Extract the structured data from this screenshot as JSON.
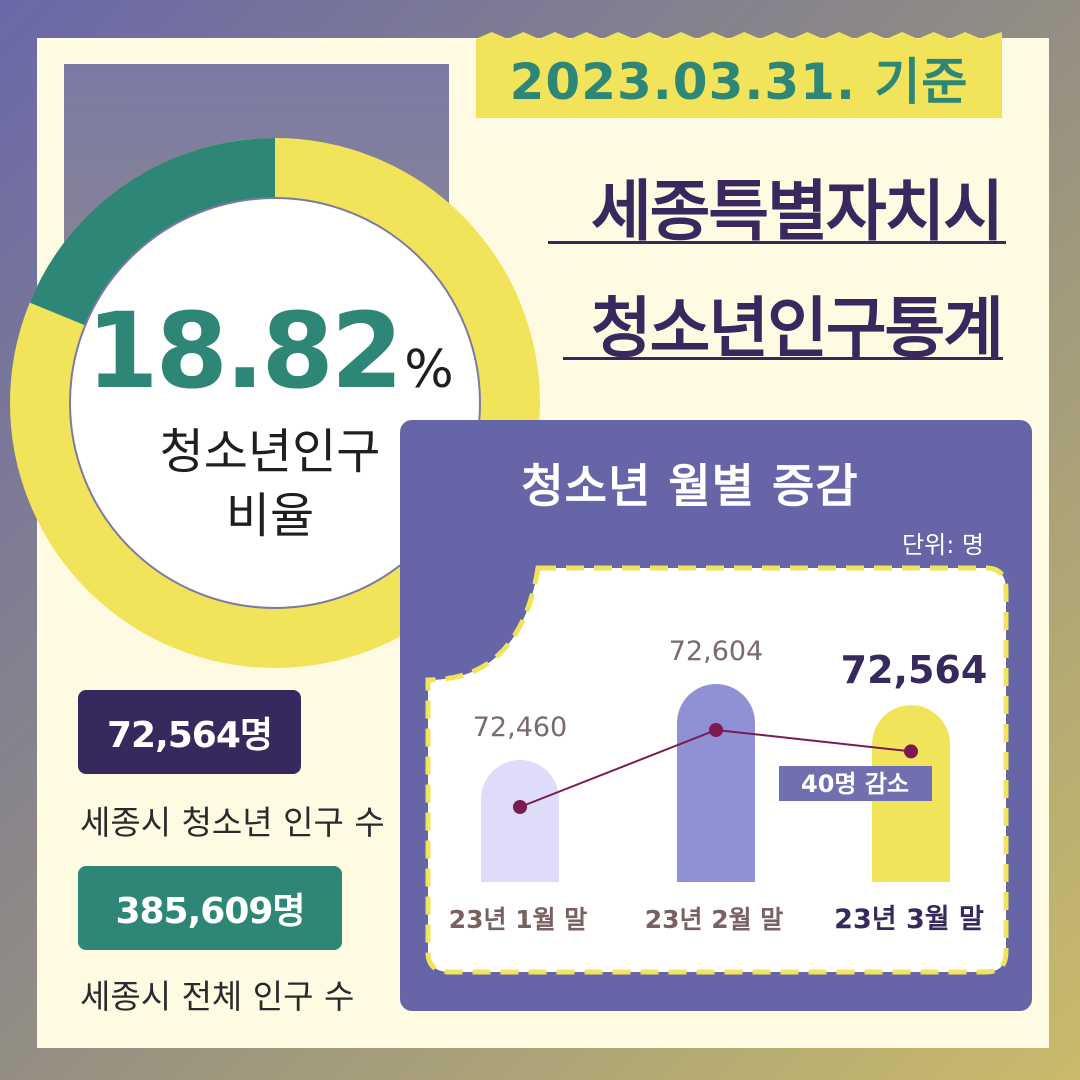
{
  "date_banner": "2023.03.31. 기준",
  "title_line1": "세종특별자치시",
  "title_line2": "청소년인구통계",
  "ratio": {
    "value_text": "18.82",
    "unit": "%",
    "label_line1": "청소년인구",
    "label_line2": "비율",
    "fraction": 0.1882,
    "colors": {
      "highlight": "#2e8676",
      "rest": "#f2e45a"
    }
  },
  "stats": [
    {
      "value": "72,564명",
      "caption": "세종시 청소년 인구 수",
      "color": "#37295e"
    },
    {
      "value": "385,609명",
      "caption": "세종시 전체 인구 수",
      "color": "#2e8676"
    }
  ],
  "chart_data": {
    "type": "bar",
    "title": "청소년 월별 증감",
    "unit_label": "단위: 명",
    "categories": [
      "23년 1월 말",
      "23년 2월 말",
      "23년 3월 말"
    ],
    "values": [
      72460,
      72604,
      72564
    ],
    "value_labels": [
      "72,460",
      "72,604",
      "72,564"
    ],
    "bar_colors": [
      "#dedcf8",
      "#9090d4",
      "#f2e45a"
    ],
    "line_color": "#7a1a52",
    "annotation": "40명 감소"
  }
}
